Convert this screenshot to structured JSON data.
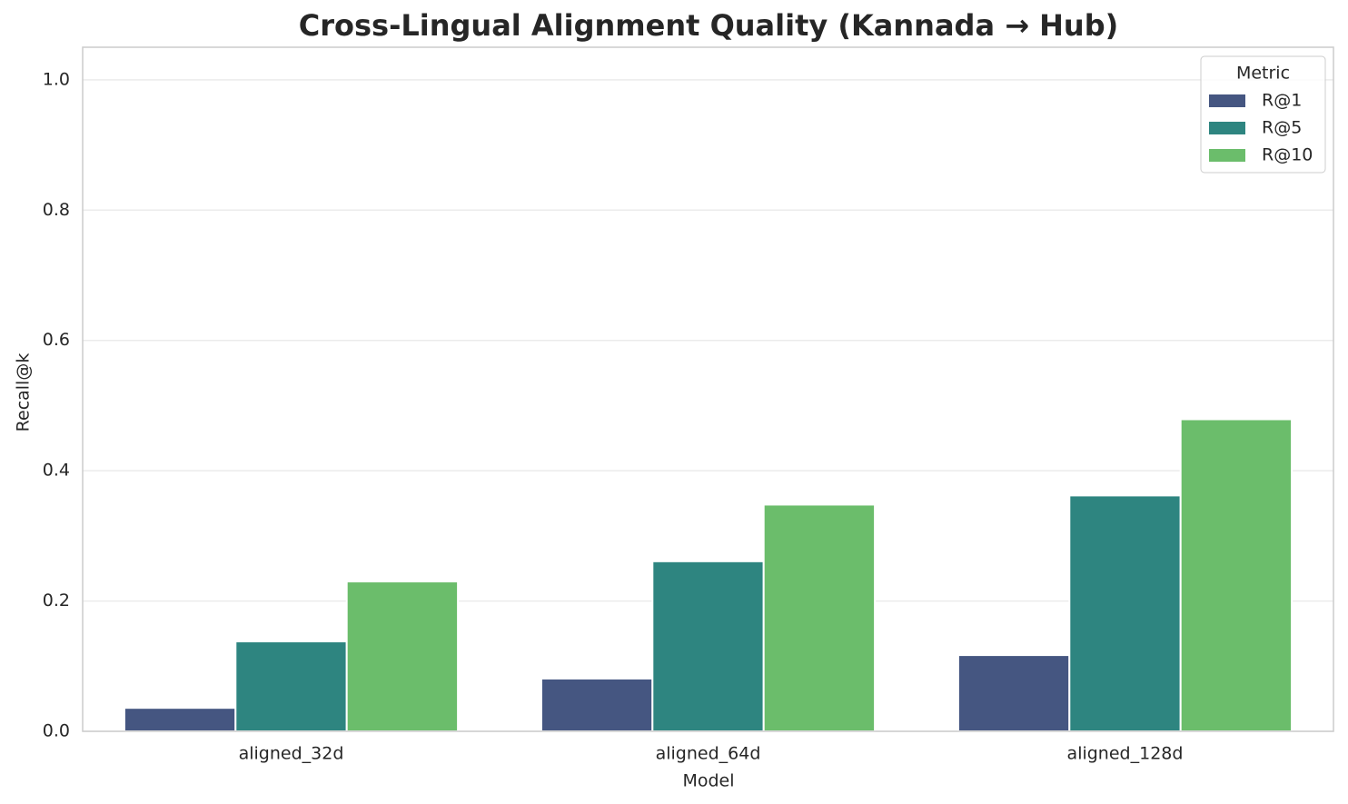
{
  "chart_data": {
    "type": "bar",
    "title": "Cross-Lingual Alignment Quality (Kannada → Hub)",
    "x_label": "Model",
    "y_label": "Recall@k",
    "categories": [
      "aligned_32d",
      "aligned_64d",
      "aligned_128d"
    ],
    "series": [
      {
        "name": "R@1",
        "color": "#455681",
        "values": [
          0.036,
          0.081,
          0.117
        ]
      },
      {
        "name": "R@5",
        "color": "#2e8580",
        "values": [
          0.138,
          0.261,
          0.362
        ]
      },
      {
        "name": "R@10",
        "color": "#6bbd6b",
        "values": [
          0.23,
          0.348,
          0.479
        ]
      }
    ],
    "legend_title": "Metric",
    "legend_position": "upper right",
    "ylim": [
      0,
      1.05
    ],
    "yticks": [
      {
        "value": 0,
        "label": "0.0"
      },
      {
        "value": 0.2,
        "label": "0.2"
      },
      {
        "value": 0.4,
        "label": "0.4"
      },
      {
        "value": 0.6,
        "label": "0.6"
      },
      {
        "value": 0.8,
        "label": "0.8"
      },
      {
        "value": 1,
        "label": "1.0"
      }
    ],
    "grid": true
  }
}
